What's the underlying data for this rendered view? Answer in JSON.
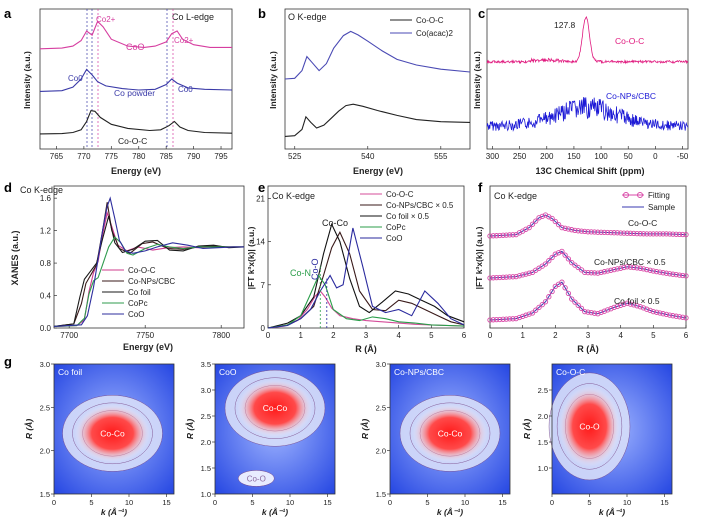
{
  "figure": {
    "panels": {
      "a": {
        "letter": "a",
        "title": "Co L-edge",
        "ylabel": "Intensity (a.u.)",
        "xlabel": "Energy (eV)"
      },
      "b": {
        "letter": "b",
        "title": "O K-edge",
        "ylabel": "Intensity (a.u.)",
        "xlabel": "Energy (eV)"
      },
      "c": {
        "letter": "c",
        "ylabel": "Intensity (a.u.)",
        "xlabel": "13C Chemical Shift (ppm)",
        "peak_label": "127.8"
      },
      "d": {
        "letter": "d",
        "title": "Co K-edge",
        "ylabel": "XANES (a.u.)",
        "xlabel": "Energy (eV)"
      },
      "e": {
        "letter": "e",
        "title": "Co K-edge",
        "ylabel": "|FT k³x(k)| (a.u.)",
        "xlabel": "R (Å)",
        "annot_coco": "Co-Co",
        "annot_con": "Co-N",
        "annot_coo": "Co-O"
      },
      "f": {
        "letter": "f",
        "title": "Co K-edge",
        "ylabel": "|FT k³x(k)| (a.u.)",
        "xlabel": "R (Å)"
      },
      "g": {
        "letter": "g"
      }
    }
  },
  "chart_data": [
    {
      "panel": "a",
      "type": "line",
      "title": "Co L-edge",
      "xlabel": "Energy (eV)",
      "ylabel": "Intensity (a.u.)",
      "xlim": [
        762,
        797
      ],
      "ylim": [
        0,
        10.2
      ],
      "xticks": [
        765,
        770,
        775,
        780,
        785,
        790,
        795
      ],
      "series": [
        {
          "name": "CoO",
          "color": "#d63ea0",
          "x": [
            762,
            766,
            768,
            769.5,
            770.5,
            771.5,
            772.5,
            773.5,
            775,
            778,
            781,
            783,
            785,
            786,
            787,
            788,
            790,
            793,
            797
          ],
          "y": [
            7.3,
            7.35,
            7.5,
            7.9,
            8.6,
            8.3,
            9.3,
            8.9,
            8.0,
            7.5,
            7.4,
            7.5,
            7.8,
            8.4,
            8.6,
            8.0,
            7.6,
            7.4,
            7.4
          ]
        },
        {
          "name": "Co powder",
          "color": "#3a3aa8",
          "x": [
            762,
            766,
            768,
            769.5,
            770.5,
            771.5,
            772.5,
            774,
            777,
            780,
            783,
            785,
            786,
            787,
            789,
            792,
            797
          ],
          "y": [
            4.2,
            4.25,
            4.5,
            5.1,
            5.8,
            5.4,
            4.9,
            4.6,
            4.4,
            4.3,
            4.35,
            4.7,
            5.1,
            4.8,
            4.45,
            4.35,
            4.3
          ]
        },
        {
          "name": "Co-O-C",
          "color": "#222222",
          "x": [
            762,
            766,
            768,
            769.5,
            770.5,
            771.3,
            772,
            773,
            775,
            778,
            782,
            784,
            785.5,
            786.5,
            787.5,
            789,
            792,
            797
          ],
          "y": [
            1.1,
            1.12,
            1.2,
            1.4,
            2.0,
            2.8,
            2.75,
            2.3,
            1.8,
            1.5,
            1.35,
            1.4,
            1.7,
            2.0,
            1.6,
            1.35,
            1.2,
            1.15
          ]
        }
      ],
      "labels": [
        "Co2+",
        "CoO",
        "Co2+",
        "Co0",
        "Co powder",
        "Co0",
        "Co-O-C"
      ]
    },
    {
      "panel": "b",
      "type": "line",
      "title": "O K-edge",
      "xlabel": "Energy (eV)",
      "ylabel": "Intensity (a.u.)",
      "xlim": [
        523,
        561
      ],
      "xticks": [
        525,
        540,
        555
      ],
      "legend": [
        "Co-O-C",
        "Co(acac)2"
      ],
      "series": [
        {
          "name": "Co(acac)2",
          "color": "#4a4ab4",
          "x": [
            523,
            525,
            526.5,
            527.5,
            528.5,
            530,
            531.5,
            533,
            535,
            536.5,
            538,
            540,
            543,
            546,
            550,
            555,
            561
          ],
          "y": [
            5.0,
            5.05,
            5.6,
            6.6,
            6.2,
            5.6,
            6.1,
            7.2,
            8.1,
            8.4,
            8.15,
            7.7,
            7.0,
            6.4,
            6.0,
            5.7,
            5.5
          ]
        },
        {
          "name": "Co-O-C",
          "color": "#222222",
          "x": [
            523,
            525,
            526.5,
            527.3,
            528.3,
            529.5,
            531,
            532.5,
            534,
            535.5,
            537,
            539,
            542,
            546,
            550,
            555,
            561
          ],
          "y": [
            0.9,
            0.95,
            1.4,
            2.3,
            1.9,
            1.5,
            1.7,
            2.2,
            2.7,
            3.1,
            3.2,
            3.05,
            2.75,
            2.4,
            2.1,
            1.95,
            1.9
          ]
        }
      ]
    },
    {
      "panel": "c",
      "type": "line",
      "title": "",
      "xlabel": "13C Chemical Shift (ppm)",
      "ylabel": "Intensity (a.u.)",
      "xlim": [
        310,
        -60
      ],
      "xticks": [
        300,
        250,
        200,
        150,
        100,
        50,
        0,
        -50
      ],
      "series": [
        {
          "name": "Co-O-C",
          "color": "#e0197e",
          "peak": 127.8
        },
        {
          "name": "Co-NPs/CBC",
          "color": "#1d1ad6"
        }
      ]
    },
    {
      "panel": "d",
      "type": "line",
      "title": "Co K-edge",
      "xlabel": "Energy (eV)",
      "ylabel": "XANES (a.u.)",
      "xlim": [
        7690,
        7815
      ],
      "ylim": [
        0,
        1.75
      ],
      "xticks": [
        7700,
        7750,
        7800
      ],
      "yticks": [
        0.0,
        0.4,
        0.8,
        1.2,
        1.6
      ],
      "legend": [
        "Co-O-C",
        "Co-NPs/CBC",
        "Co foil",
        "CoPc",
        "CoO"
      ],
      "series": [
        {
          "name": "Co-O-C",
          "color": "#cf3d8e",
          "x": [
            7690,
            7705,
            7710,
            7713,
            7716,
            7719,
            7722,
            7725,
            7728,
            7732,
            7738,
            7745,
            7755,
            7765,
            7775,
            7785,
            7795,
            7805,
            7815
          ],
          "y": [
            0.02,
            0.03,
            0.1,
            0.45,
            0.68,
            0.82,
            1.15,
            1.42,
            1.25,
            1.02,
            0.95,
            1.0,
            0.96,
            0.99,
            1.0,
            0.99,
            1.0,
            1.0,
            1.0
          ]
        },
        {
          "name": "Co-NPs/CBC",
          "color": "#3a1a1a",
          "x": [
            7690,
            7703,
            7708,
            7711,
            7715,
            7718,
            7722,
            7725,
            7728,
            7733,
            7740,
            7748,
            7755,
            7765,
            7775,
            7785,
            7795,
            7805,
            7815
          ],
          "y": [
            0.02,
            0.05,
            0.3,
            0.55,
            0.68,
            0.78,
            1.2,
            1.55,
            1.2,
            0.98,
            0.92,
            1.04,
            1.06,
            0.98,
            0.97,
            1.0,
            1.01,
            1.0,
            1.0
          ]
        },
        {
          "name": "Co foil",
          "color": "#1a1a1a",
          "x": [
            7690,
            7703,
            7707,
            7710,
            7714,
            7718,
            7722,
            7726,
            7730,
            7735,
            7742,
            7750,
            7758,
            7766,
            7775,
            7785,
            7795,
            7805,
            7815
          ],
          "y": [
            0.02,
            0.05,
            0.38,
            0.6,
            0.7,
            0.8,
            1.1,
            1.38,
            1.05,
            0.93,
            0.97,
            1.07,
            1.08,
            0.96,
            0.95,
            1.01,
            1.02,
            0.99,
            1.0
          ]
        },
        {
          "name": "CoPc",
          "color": "#2f9b4e",
          "x": [
            7690,
            7705,
            7710,
            7713,
            7716,
            7719,
            7722,
            7726,
            7730,
            7734,
            7738,
            7742,
            7750,
            7758,
            7766,
            7775,
            7785,
            7795,
            7805,
            7815
          ],
          "y": [
            0.02,
            0.03,
            0.12,
            0.42,
            0.58,
            0.62,
            0.78,
            1.0,
            1.12,
            1.05,
            0.92,
            0.9,
            0.98,
            1.03,
            1.0,
            0.98,
            1.0,
            1.0,
            1.0,
            1.0
          ]
        },
        {
          "name": "CoO",
          "color": "#2e2e9e",
          "x": [
            7690,
            7708,
            7712,
            7716,
            7719,
            7722,
            7725,
            7727,
            7730,
            7733,
            7737,
            7742,
            7750,
            7758,
            7768,
            7778,
            7788,
            7798,
            7808,
            7815
          ],
          "y": [
            0.02,
            0.04,
            0.15,
            0.5,
            0.85,
            1.2,
            1.5,
            1.6,
            1.35,
            1.08,
            0.95,
            0.92,
            0.95,
            1.0,
            1.05,
            1.02,
            0.98,
            0.99,
            1.0,
            1.0
          ]
        }
      ]
    },
    {
      "panel": "e",
      "type": "line",
      "title": "Co K-edge",
      "xlabel": "R (Å)",
      "ylabel": "|FT k³x(k)| (a.u.)",
      "xlim": [
        0,
        6
      ],
      "ylim": [
        0,
        23
      ],
      "xticks": [
        0,
        1,
        2,
        3,
        4,
        5,
        6
      ],
      "yticks": [
        0,
        7,
        14,
        21
      ],
      "legend": [
        "Co-O-C",
        "Co-NPs/CBC × 0.5",
        "Co foil × 0.5",
        "CoPc",
        "CoO"
      ],
      "series": [
        {
          "name": "Co-O-C",
          "color": "#d44c9a",
          "x": [
            0,
            0.5,
            0.9,
            1.2,
            1.45,
            1.6,
            1.75,
            1.95,
            2.2,
            2.6,
            3.0,
            3.5,
            4.0,
            4.5,
            5.0,
            5.5,
            6.0
          ],
          "y": [
            0,
            0.3,
            1.2,
            3.0,
            5.2,
            6.0,
            5.0,
            3.2,
            2.0,
            1.5,
            1.2,
            1.0,
            0.8,
            0.6,
            0.5,
            0.4,
            0.3
          ]
        },
        {
          "name": "Co-NPs/CBC × 0.5",
          "color": "#3a1a1a",
          "x": [
            0,
            0.6,
            1.0,
            1.4,
            1.7,
            1.95,
            2.2,
            2.5,
            2.8,
            3.2,
            3.6,
            4.0,
            4.4,
            4.8,
            5.2,
            5.6,
            6.0
          ],
          "y": [
            0,
            0.5,
            1.5,
            3.5,
            8.5,
            13.0,
            15.5,
            12.0,
            6.0,
            3.0,
            2.8,
            4.5,
            4.0,
            3.0,
            2.0,
            1.0,
            0.5
          ]
        },
        {
          "name": "Co foil × 0.5",
          "color": "#111111",
          "x": [
            0,
            0.6,
            1.0,
            1.4,
            1.7,
            1.95,
            2.2,
            2.5,
            2.8,
            3.1,
            3.5,
            3.9,
            4.3,
            4.7,
            5.1,
            5.5,
            6.0
          ],
          "y": [
            0,
            0.8,
            2.0,
            5.0,
            12.0,
            16.8,
            14.0,
            8.0,
            3.5,
            2.5,
            4.2,
            6.0,
            5.5,
            4.5,
            3.5,
            2.0,
            1.0
          ]
        },
        {
          "name": "CoPc",
          "color": "#2b9e4a",
          "x": [
            0,
            0.6,
            1.0,
            1.3,
            1.55,
            1.75,
            2.0,
            2.4,
            2.8,
            3.2,
            3.6,
            4.0,
            4.5,
            5.0,
            6.0
          ],
          "y": [
            0,
            0.5,
            2.0,
            5.5,
            8.5,
            7.0,
            3.0,
            1.5,
            1.2,
            1.8,
            1.5,
            1.0,
            0.8,
            0.5,
            0.3
          ]
        },
        {
          "name": "CoO",
          "color": "#2a2a9e",
          "x": [
            0,
            0.6,
            1.0,
            1.3,
            1.6,
            1.9,
            2.1,
            2.3,
            2.6,
            2.9,
            3.2,
            3.6,
            4.0,
            4.4,
            4.8,
            5.2,
            5.6,
            6.0
          ],
          "y": [
            0,
            0.4,
            1.5,
            3.0,
            6.0,
            8.5,
            6.5,
            7.0,
            16.2,
            10.0,
            3.5,
            2.5,
            3.0,
            2.0,
            6.0,
            4.0,
            1.5,
            0.5
          ]
        }
      ],
      "annotations": [
        "Co-Co",
        "Co-N",
        "Co-O"
      ]
    },
    {
      "panel": "f",
      "type": "line",
      "title": "Co K-edge",
      "xlabel": "R (Å)",
      "ylabel": "|FT k³x(k)| (a.u.)",
      "xlim": [
        0,
        6
      ],
      "xticks": [
        0,
        1,
        2,
        3,
        4,
        5,
        6
      ],
      "legend": [
        "Fitting",
        "Sample"
      ],
      "series": [
        {
          "name": "Co-O-C",
          "x": [
            0,
            0.8,
            1.2,
            1.5,
            1.7,
            1.9,
            2.2,
            2.6,
            3.0,
            3.6,
            4.2,
            4.8,
            5.4,
            6.0
          ],
          "y": [
            0,
            0.2,
            1.2,
            2.6,
            3.0,
            2.5,
            1.2,
            0.8,
            0.6,
            0.5,
            0.4,
            0.3,
            0.3,
            0.2
          ]
        },
        {
          "name": "Co-NPs/CBC × 0.5",
          "x": [
            0,
            0.8,
            1.3,
            1.7,
            2.0,
            2.2,
            2.5,
            2.9,
            3.3,
            3.8,
            4.2,
            4.6,
            5.0,
            5.5,
            6.0
          ],
          "y": [
            0,
            0.2,
            0.8,
            2.0,
            3.4,
            3.8,
            2.2,
            0.8,
            0.7,
            1.2,
            1.6,
            1.4,
            1.0,
            0.6,
            0.3
          ]
        },
        {
          "name": "Co foil × 0.5",
          "x": [
            0,
            0.8,
            1.3,
            1.7,
            2.0,
            2.2,
            2.5,
            2.9,
            3.3,
            3.8,
            4.2,
            4.6,
            5.0,
            5.5,
            6.0
          ],
          "y": [
            0,
            0.2,
            1.0,
            2.6,
            4.8,
            5.4,
            3.0,
            1.2,
            0.9,
            1.8,
            2.4,
            1.9,
            1.2,
            0.7,
            0.3
          ]
        }
      ]
    },
    {
      "panel": "g",
      "type": "heatmap",
      "maps": [
        {
          "title": "Co foil",
          "xlabel": "k (Å⁻¹)",
          "ylabel": "R (Å)",
          "xlim": [
            0,
            16
          ],
          "ylim": [
            1.5,
            3.0
          ],
          "xticks": [
            0,
            5,
            10,
            15
          ],
          "yticks": [
            1.5,
            2.0,
            2.5,
            3.0
          ],
          "peak_label": "Co-Co",
          "peak_k": 7.8,
          "peak_R": 2.2
        },
        {
          "title": "CoO",
          "xlabel": "k (Å⁻¹)",
          "ylabel": "R (Å)",
          "xlim": [
            0,
            16
          ],
          "ylim": [
            1.0,
            3.5
          ],
          "xticks": [
            0,
            5,
            10,
            15
          ],
          "yticks": [
            1.0,
            1.5,
            2.0,
            2.5,
            3.0,
            3.5
          ],
          "peak_label": "Co-Co",
          "peak_k": 8.0,
          "peak_R": 2.65,
          "second_label": "Co-O",
          "second_k": 5.5,
          "second_R": 1.3
        },
        {
          "title": "Co-NPs/CBC",
          "xlabel": "k (Å⁻¹)",
          "ylabel": "R (Å)",
          "xlim": [
            0,
            16
          ],
          "ylim": [
            1.5,
            3.0
          ],
          "xticks": [
            0,
            5,
            10,
            15
          ],
          "yticks": [
            1.5,
            2.0,
            2.5,
            3.0
          ],
          "peak_label": "Co-Co",
          "peak_k": 8.0,
          "peak_R": 2.2
        },
        {
          "title": "Co-O-C",
          "xlabel": "k (Å⁻¹)",
          "ylabel": "R (Å)",
          "xlim": [
            0,
            16
          ],
          "ylim": [
            0.5,
            3.0
          ],
          "xticks": [
            0,
            5,
            10,
            15
          ],
          "yticks": [
            1.0,
            1.5,
            2.0,
            2.5
          ],
          "peak_label": "Co-O",
          "peak_k": 5.0,
          "peak_R": 1.8
        }
      ]
    }
  ]
}
